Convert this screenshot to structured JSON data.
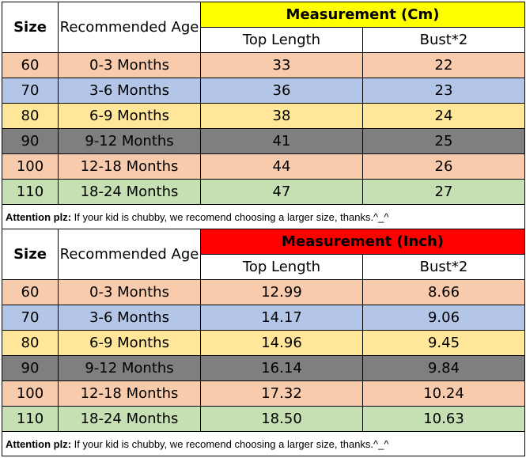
{
  "colors": {
    "row_peach": "#f8cbad",
    "row_blue": "#b4c6e7",
    "row_yellow": "#ffe699",
    "row_gray": "#7f7f7f",
    "row_green": "#c6e0b4",
    "cm_header": "#ffff00",
    "inch_header": "#ff0000"
  },
  "tables": [
    {
      "size_label": "Size",
      "age_label": "Recommended Age",
      "measurement_label": "Measurement (Cm)",
      "length_label": "Top Length",
      "bust_label": "Bust*2",
      "rows": [
        {
          "size": "60",
          "age": "0-3 Months",
          "length": "33",
          "bust": "22"
        },
        {
          "size": "70",
          "age": "3-6 Months",
          "length": "36",
          "bust": "23"
        },
        {
          "size": "80",
          "age": "6-9 Months",
          "length": "38",
          "bust": "24"
        },
        {
          "size": "90",
          "age": "9-12 Months",
          "length": "41",
          "bust": "25"
        },
        {
          "size": "100",
          "age": "12-18 Months",
          "length": "44",
          "bust": "26"
        },
        {
          "size": "110",
          "age": "18-24 Months",
          "length": "47",
          "bust": "27"
        }
      ],
      "note_label": "Attention plz:",
      "note_text": " If your kid is chubby, we recomend choosing a larger size, thanks.^_^"
    },
    {
      "size_label": "Size",
      "age_label": "Recommended Age",
      "measurement_label": "Measurement (Inch)",
      "length_label": "Top Length",
      "bust_label": "Bust*2",
      "rows": [
        {
          "size": "60",
          "age": "0-3 Months",
          "length": "12.99",
          "bust": "8.66"
        },
        {
          "size": "70",
          "age": "3-6 Months",
          "length": "14.17",
          "bust": "9.06"
        },
        {
          "size": "80",
          "age": "6-9 Months",
          "length": "14.96",
          "bust": "9.45"
        },
        {
          "size": "90",
          "age": "9-12 Months",
          "length": "16.14",
          "bust": "9.84"
        },
        {
          "size": "100",
          "age": "12-18 Months",
          "length": "17.32",
          "bust": "10.24"
        },
        {
          "size": "110",
          "age": "18-24 Months",
          "length": "18.50",
          "bust": "10.63"
        }
      ],
      "note_label": "Attention plz:",
      "note_text": " If your kid is chubby, we recomend choosing a larger size, thanks.^_^"
    }
  ]
}
